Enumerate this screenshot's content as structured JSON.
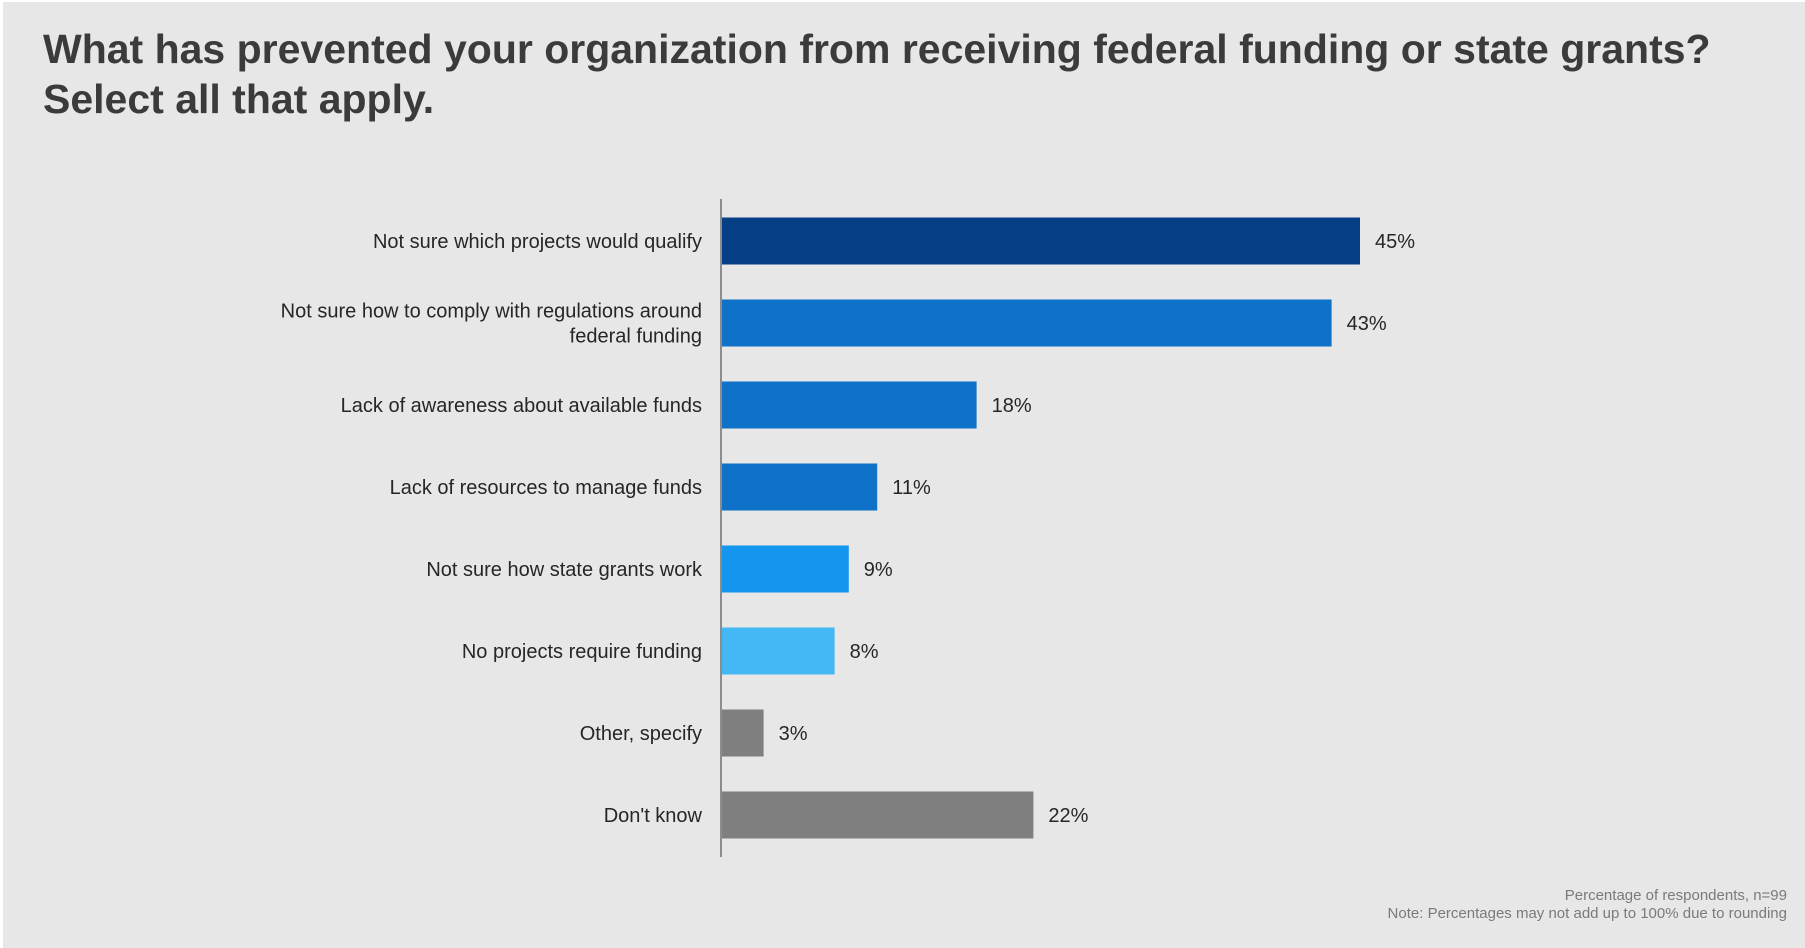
{
  "title": {
    "line1": "What has prevented your organization from receiving federal funding or state grants?",
    "line2": "Select all that apply."
  },
  "footnote": {
    "line1": "Percentage of respondents, n=99",
    "line2": "Note: Percentages may not add up to 100% due to rounding"
  },
  "chart_data": {
    "type": "bar",
    "orientation": "horizontal",
    "categories": [
      [
        "Not sure which projects would qualify"
      ],
      [
        "Not sure how to comply with regulations around",
        "federal funding"
      ],
      [
        "Lack of awareness about available funds"
      ],
      [
        "Lack of resources to manage funds"
      ],
      [
        "Not sure how state grants work"
      ],
      [
        "No projects require funding"
      ],
      [
        "Other, specify"
      ],
      [
        "Don't know"
      ]
    ],
    "values": [
      45,
      43,
      18,
      11,
      9,
      8,
      3,
      22
    ],
    "value_labels": [
      "45%",
      "43%",
      "18%",
      "11%",
      "9%",
      "8%",
      "3%",
      "22%"
    ],
    "colors": [
      "#073f87",
      "#0e72c8",
      "#0e72c8",
      "#0e72c8",
      "#1496ee",
      "#44b7f5",
      "#7f7f7f",
      "#7f7f7f"
    ],
    "axis_line_color": "#8c8c8c",
    "xlim": [
      0,
      60
    ],
    "grid": false,
    "legend": "none"
  }
}
